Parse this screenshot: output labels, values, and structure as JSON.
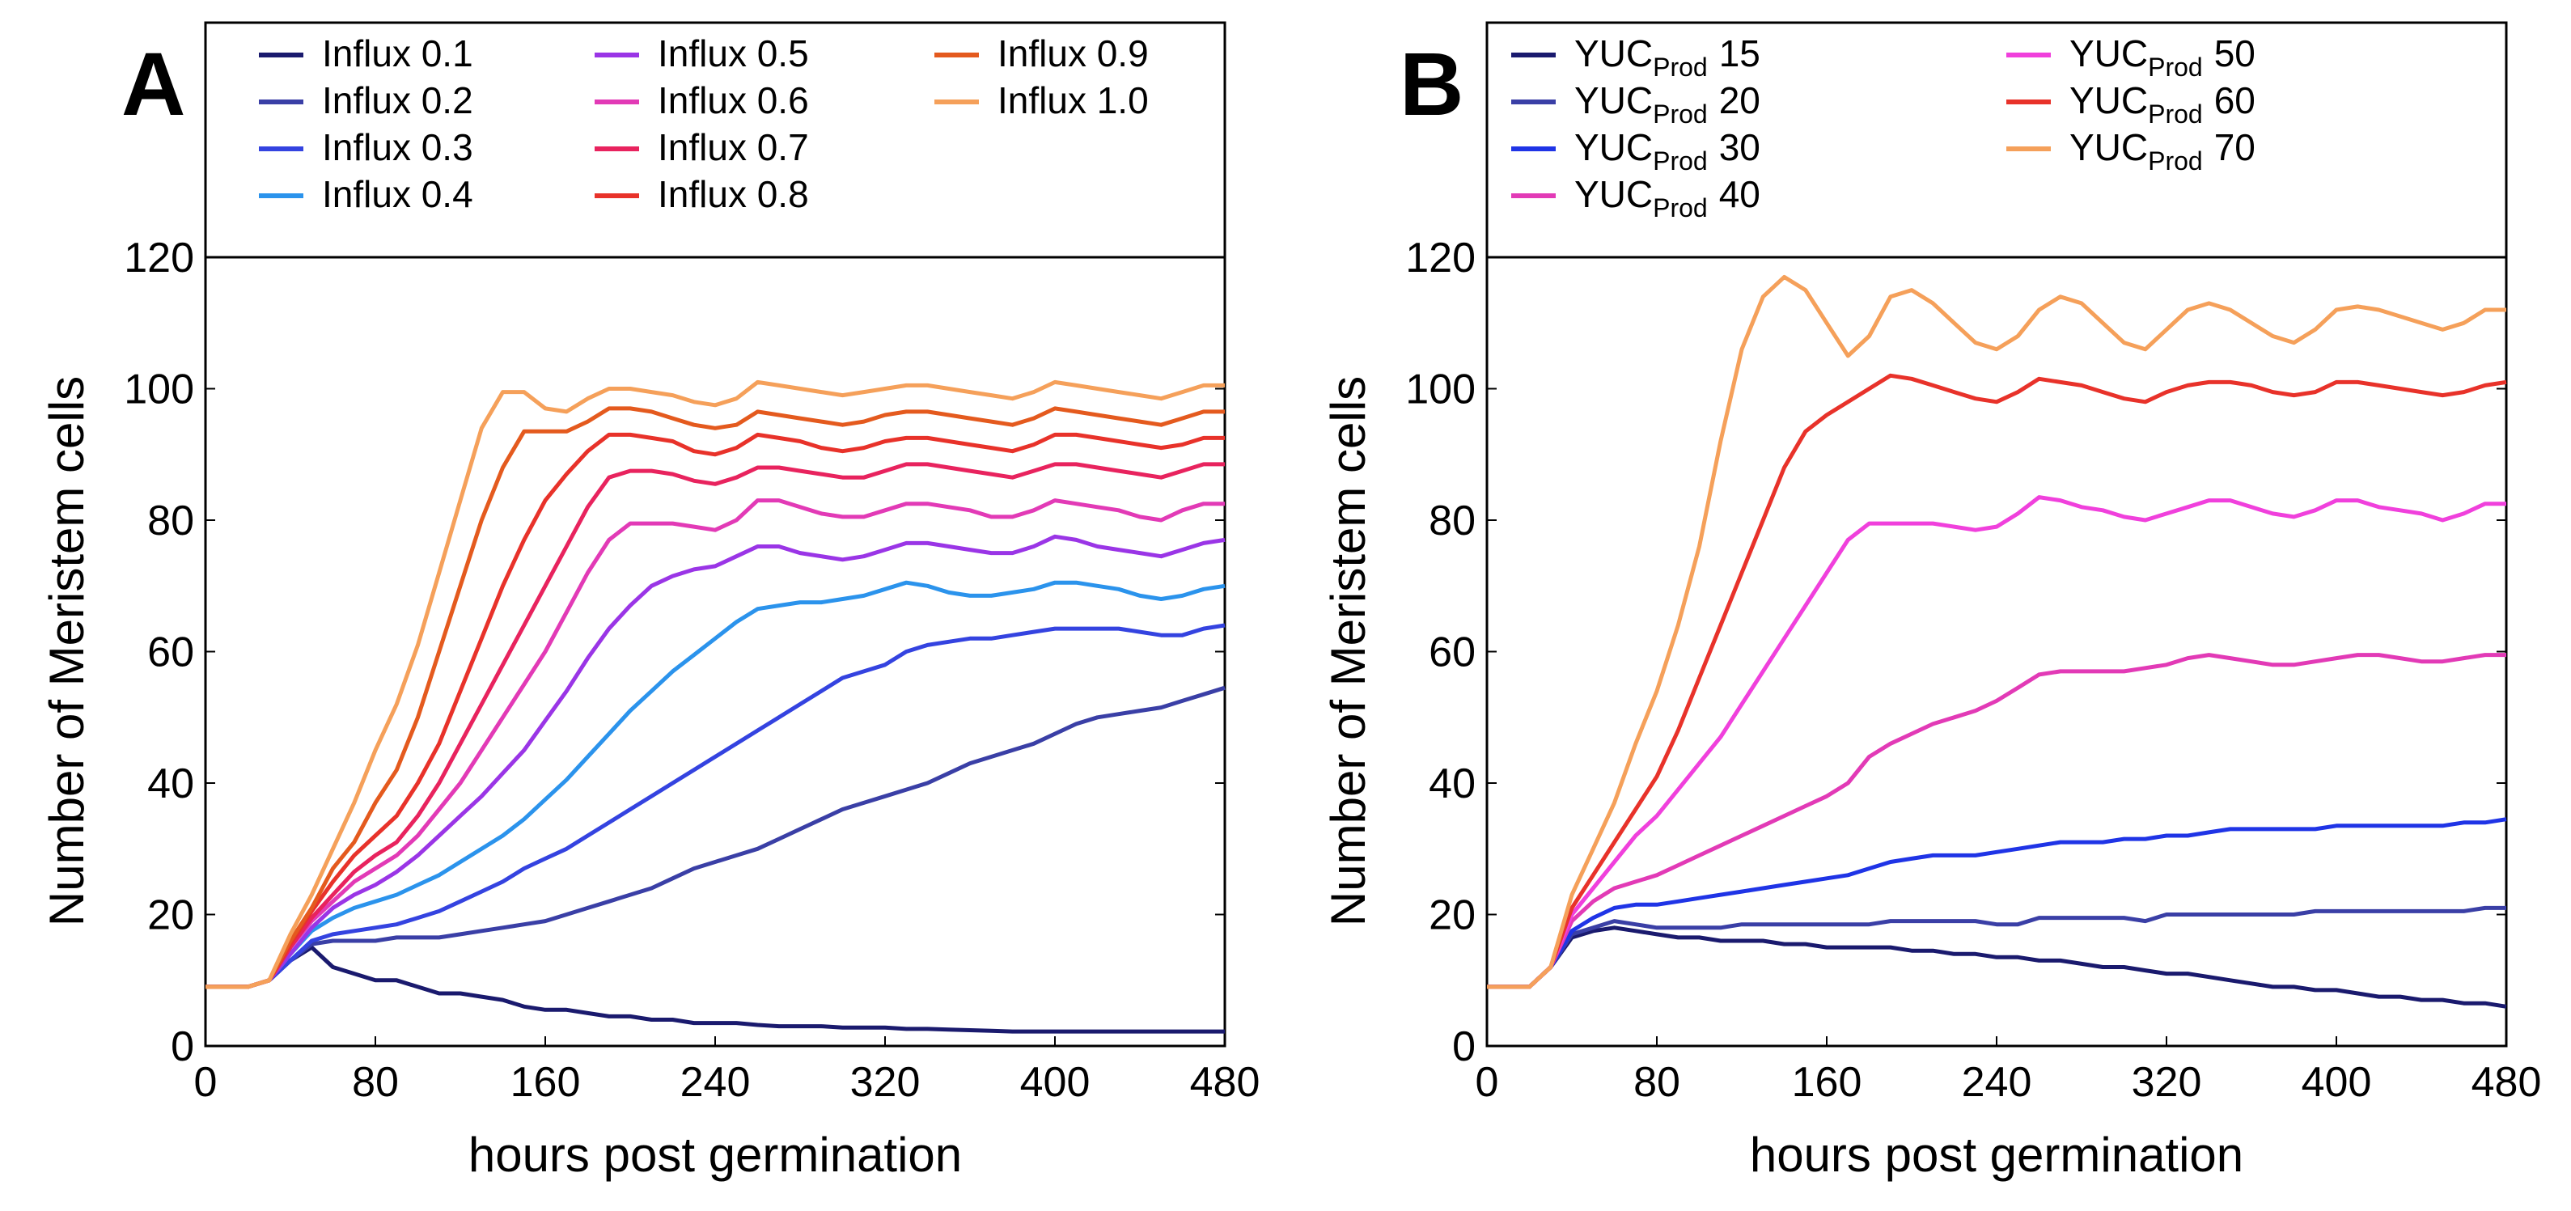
{
  "chart_data": [
    {
      "panel": "A",
      "type": "line",
      "xlabel": "hours post germination",
      "ylabel": "Number of Meristem cells",
      "xlim": [
        0,
        480
      ],
      "ylim": [
        0,
        120
      ],
      "xticks": [
        0,
        80,
        160,
        240,
        320,
        400,
        480
      ],
      "yticks": [
        0,
        20,
        40,
        60,
        80,
        100,
        120
      ],
      "grid": false,
      "legend_position": "top",
      "x": [
        0,
        10,
        20,
        30,
        40,
        50,
        60,
        70,
        80,
        90,
        100,
        110,
        120,
        130,
        140,
        150,
        160,
        170,
        180,
        190,
        200,
        210,
        220,
        230,
        240,
        250,
        260,
        270,
        280,
        290,
        300,
        310,
        320,
        330,
        340,
        350,
        360,
        370,
        380,
        390,
        400,
        410,
        420,
        430,
        440,
        450,
        460,
        470,
        480
      ],
      "series": [
        {
          "name": "Influx 0.1",
          "color": "#1a1a6e",
          "values": [
            9,
            9,
            9,
            10,
            13,
            15,
            12,
            11,
            10,
            10,
            9,
            8,
            8,
            7.5,
            7,
            6,
            5.5,
            5.5,
            5,
            4.5,
            4.5,
            4,
            4,
            3.5,
            3.5,
            3.5,
            3.2,
            3,
            3,
            3,
            2.8,
            2.8,
            2.8,
            2.6,
            2.6,
            2.5,
            2.4,
            2.3,
            2.2,
            2.2,
            2.2,
            2.2,
            2.2,
            2.2,
            2.2,
            2.2,
            2.2,
            2.2,
            2.2
          ]
        },
        {
          "name": "Influx 0.2",
          "color": "#3a3fa6",
          "values": [
            9,
            9,
            9,
            10,
            13,
            15.5,
            16,
            16,
            16,
            16.5,
            16.5,
            16.5,
            17,
            17.5,
            18,
            18.5,
            19,
            20,
            21,
            22,
            23,
            24,
            25.5,
            27,
            28,
            29,
            30,
            31.5,
            33,
            34.5,
            36,
            37,
            38,
            39,
            40,
            41.5,
            43,
            44,
            45,
            46,
            47.5,
            49,
            50,
            50.5,
            51,
            51.5,
            52.5,
            53.5,
            54.5
          ]
        },
        {
          "name": "Influx 0.3",
          "color": "#3443e0",
          "values": [
            9,
            9,
            9,
            10,
            13,
            16,
            17,
            17.5,
            18,
            18.5,
            19.5,
            20.5,
            22,
            23.5,
            25,
            27,
            28.5,
            30,
            32,
            34,
            36,
            38,
            40,
            42,
            44,
            46,
            48,
            50,
            52,
            54,
            56,
            57,
            58,
            60,
            61,
            61.5,
            62,
            62,
            62.5,
            63,
            63.5,
            63.5,
            63.5,
            63.5,
            63,
            62.5,
            62.5,
            63.5,
            64
          ]
        },
        {
          "name": "Influx 0.4",
          "color": "#2b93ec",
          "values": [
            9,
            9,
            9,
            10,
            14,
            17.5,
            19.5,
            21,
            22,
            23,
            24.5,
            26,
            28,
            30,
            32,
            34.5,
            37.5,
            40.5,
            44,
            47.5,
            51,
            54,
            57,
            59.5,
            62,
            64.5,
            66.5,
            67,
            67.5,
            67.5,
            68,
            68.5,
            69.5,
            70.5,
            70,
            69,
            68.5,
            68.5,
            69,
            69.5,
            70.5,
            70.5,
            70,
            69.5,
            68.5,
            68,
            68.5,
            69.5,
            70
          ]
        },
        {
          "name": "Influx 0.5",
          "color": "#9a35e6",
          "values": [
            9,
            9,
            9,
            10,
            14,
            18,
            21,
            23,
            24.5,
            26.5,
            29,
            32,
            35,
            38,
            41.5,
            45,
            49.5,
            54,
            59,
            63.5,
            67,
            70,
            71.5,
            72.5,
            73,
            74.5,
            76,
            76,
            75,
            74.5,
            74,
            74.5,
            75.5,
            76.5,
            76.5,
            76,
            75.5,
            75,
            75,
            76,
            77.5,
            77,
            76,
            75.5,
            75,
            74.5,
            75.5,
            76.5,
            77
          ]
        },
        {
          "name": "Influx 0.6",
          "color": "#e23ab6",
          "values": [
            9,
            9,
            9,
            10,
            15,
            19,
            22,
            25,
            27,
            29,
            32,
            36,
            40,
            45,
            50,
            55,
            60,
            66,
            72,
            77,
            79.5,
            79.5,
            79.5,
            79,
            78.5,
            80,
            83,
            83,
            82,
            81,
            80.5,
            80.5,
            81.5,
            82.5,
            82.5,
            82,
            81.5,
            80.5,
            80.5,
            81.5,
            83,
            82.5,
            82,
            81.5,
            80.5,
            80,
            81.5,
            82.5,
            82.5
          ]
        },
        {
          "name": "Influx 0.7",
          "color": "#e8235e",
          "values": [
            9,
            9,
            9,
            10,
            15,
            19.5,
            23,
            26.5,
            29,
            31,
            35,
            40,
            46,
            52,
            58,
            64,
            70,
            76,
            82,
            86.5,
            87.5,
            87.5,
            87,
            86,
            85.5,
            86.5,
            88,
            88,
            87.5,
            87,
            86.5,
            86.5,
            87.5,
            88.5,
            88.5,
            88,
            87.5,
            87,
            86.5,
            87.5,
            88.5,
            88.5,
            88,
            87.5,
            87,
            86.5,
            87.5,
            88.5,
            88.5
          ]
        },
        {
          "name": "Influx 0.8",
          "color": "#e8322a",
          "values": [
            9,
            9,
            9,
            10,
            15.5,
            20.5,
            25,
            29,
            32,
            35,
            40,
            46,
            54,
            62,
            70,
            77,
            83,
            87,
            90.5,
            93,
            93,
            92.5,
            92,
            90.5,
            90,
            91,
            93,
            92.5,
            92,
            91,
            90.5,
            91,
            92,
            92.5,
            92.5,
            92,
            91.5,
            91,
            90.5,
            91.5,
            93,
            93,
            92.5,
            92,
            91.5,
            91,
            91.5,
            92.5,
            92.5
          ]
        },
        {
          "name": "Influx 0.9",
          "color": "#e45a1e",
          "values": [
            9,
            9,
            9,
            10,
            16,
            21,
            27,
            31,
            37,
            42,
            50,
            60,
            70,
            80,
            88,
            93.5,
            93.5,
            93.5,
            95,
            97,
            97,
            96.5,
            95.5,
            94.5,
            94,
            94.5,
            96.5,
            96,
            95.5,
            95,
            94.5,
            95,
            96,
            96.5,
            96.5,
            96,
            95.5,
            95,
            94.5,
            95.5,
            97,
            96.5,
            96,
            95.5,
            95,
            94.5,
            95.5,
            96.5,
            96.5
          ]
        },
        {
          "name": "Influx 1.0",
          "color": "#f5a05a",
          "values": [
            9,
            9,
            9,
            10,
            17,
            23,
            30,
            37,
            45,
            52,
            61,
            72,
            83,
            94,
            99.5,
            99.5,
            97,
            96.5,
            98.5,
            100,
            100,
            99.5,
            99,
            98,
            97.5,
            98.5,
            101,
            100.5,
            100,
            99.5,
            99,
            99.5,
            100,
            100.5,
            100.5,
            100,
            99.5,
            99,
            98.5,
            99.5,
            101,
            100.5,
            100,
            99.5,
            99,
            98.5,
            99.5,
            100.5,
            100.5
          ]
        }
      ]
    },
    {
      "panel": "B",
      "type": "line",
      "xlabel": "hours post germination",
      "ylabel": "Number of Meristem cells",
      "xlim": [
        0,
        480
      ],
      "ylim": [
        0,
        120
      ],
      "xticks": [
        0,
        80,
        160,
        240,
        320,
        400,
        480
      ],
      "yticks": [
        0,
        20,
        40,
        60,
        80,
        100,
        120
      ],
      "grid": false,
      "legend_position": "top",
      "x": [
        0,
        10,
        20,
        30,
        40,
        50,
        60,
        70,
        80,
        90,
        100,
        110,
        120,
        130,
        140,
        150,
        160,
        170,
        180,
        190,
        200,
        210,
        220,
        230,
        240,
        250,
        260,
        270,
        280,
        290,
        300,
        310,
        320,
        330,
        340,
        350,
        360,
        370,
        380,
        390,
        400,
        410,
        420,
        430,
        440,
        450,
        460,
        470,
        480
      ],
      "series": [
        {
          "name": "YUC",
          "sub": "Prod",
          "value": "15",
          "color": "#1a1a6e",
          "values": [
            9,
            9,
            9,
            12,
            16.5,
            17.5,
            18,
            17.5,
            17,
            16.5,
            16.5,
            16,
            16,
            16,
            15.5,
            15.5,
            15,
            15,
            15,
            15,
            14.5,
            14.5,
            14,
            14,
            13.5,
            13.5,
            13,
            13,
            12.5,
            12,
            12,
            11.5,
            11,
            11,
            10.5,
            10,
            9.5,
            9,
            9,
            8.5,
            8.5,
            8,
            7.5,
            7.5,
            7,
            7,
            6.5,
            6.5,
            6
          ]
        },
        {
          "name": "YUC",
          "sub": "Prod",
          "value": "20",
          "color": "#3a3fa6",
          "values": [
            9,
            9,
            9,
            12,
            17,
            18,
            19,
            18.5,
            18,
            18,
            18,
            18,
            18.5,
            18.5,
            18.5,
            18.5,
            18.5,
            18.5,
            18.5,
            19,
            19,
            19,
            19,
            19,
            18.5,
            18.5,
            19.5,
            19.5,
            19.5,
            19.5,
            19.5,
            19,
            20,
            20,
            20,
            20,
            20,
            20,
            20,
            20.5,
            20.5,
            20.5,
            20.5,
            20.5,
            20.5,
            20.5,
            20.5,
            21,
            21
          ]
        },
        {
          "name": "YUC",
          "sub": "Prod",
          "value": "30",
          "color": "#1f34e6",
          "values": [
            9,
            9,
            9,
            12,
            17.5,
            19.5,
            21,
            21.5,
            21.5,
            22,
            22.5,
            23,
            23.5,
            24,
            24.5,
            25,
            25.5,
            26,
            27,
            28,
            28.5,
            29,
            29,
            29,
            29.5,
            30,
            30.5,
            31,
            31,
            31,
            31.5,
            31.5,
            32,
            32,
            32.5,
            33,
            33,
            33,
            33,
            33,
            33.5,
            33.5,
            33.5,
            33.5,
            33.5,
            33.5,
            34,
            34,
            34.5
          ]
        },
        {
          "name": "YUC",
          "sub": "Prod",
          "value": "40",
          "color": "#e23ab6",
          "values": [
            9,
            9,
            9,
            12,
            19,
            22,
            24,
            25,
            26,
            27.5,
            29,
            30.5,
            32,
            33.5,
            35,
            36.5,
            38,
            40,
            44,
            46,
            47.5,
            49,
            50,
            51,
            52.5,
            54.5,
            56.5,
            57,
            57,
            57,
            57,
            57.5,
            58,
            59,
            59.5,
            59,
            58.5,
            58,
            58,
            58.5,
            59,
            59.5,
            59.5,
            59,
            58.5,
            58.5,
            59,
            59.5,
            59.5
          ]
        },
        {
          "name": "YUC",
          "sub": "Prod",
          "value": "50",
          "color": "#f040dc",
          "values": [
            9,
            9,
            9,
            12,
            20,
            24,
            28,
            32,
            35,
            39,
            43,
            47,
            52,
            57,
            62,
            67,
            72,
            77,
            79.5,
            79.5,
            79.5,
            79.5,
            79,
            78.5,
            79,
            81,
            83.5,
            83,
            82,
            81.5,
            80.5,
            80,
            81,
            82,
            83,
            83,
            82,
            81,
            80.5,
            81.5,
            83,
            83,
            82,
            81.5,
            81,
            80,
            81,
            82.5,
            82.5
          ]
        },
        {
          "name": "YUC",
          "sub": "Prod",
          "value": "60",
          "color": "#e8322a",
          "values": [
            9,
            9,
            9,
            12,
            21,
            26,
            31,
            36,
            41,
            48,
            56,
            64,
            72,
            80,
            88,
            93.5,
            96,
            98,
            100,
            102,
            101.5,
            100.5,
            99.5,
            98.5,
            98,
            99.5,
            101.5,
            101,
            100.5,
            99.5,
            98.5,
            98,
            99.5,
            100.5,
            101,
            101,
            100.5,
            99.5,
            99,
            99.5,
            101,
            101,
            100.5,
            100,
            99.5,
            99,
            99.5,
            100.5,
            101
          ]
        },
        {
          "name": "YUC",
          "sub": "Prod",
          "value": "70",
          "color": "#f5a05a",
          "values": [
            9,
            9,
            9,
            12,
            23,
            30,
            37,
            46,
            54,
            64,
            76,
            92,
            106,
            114,
            117,
            115,
            110,
            105,
            108,
            114,
            115,
            113,
            110,
            107,
            106,
            108,
            112,
            114,
            113,
            110,
            107,
            106,
            109,
            112,
            113,
            112,
            110,
            108,
            107,
            109,
            112,
            112.5,
            112,
            111,
            110,
            109,
            110,
            112,
            112
          ]
        }
      ]
    }
  ]
}
